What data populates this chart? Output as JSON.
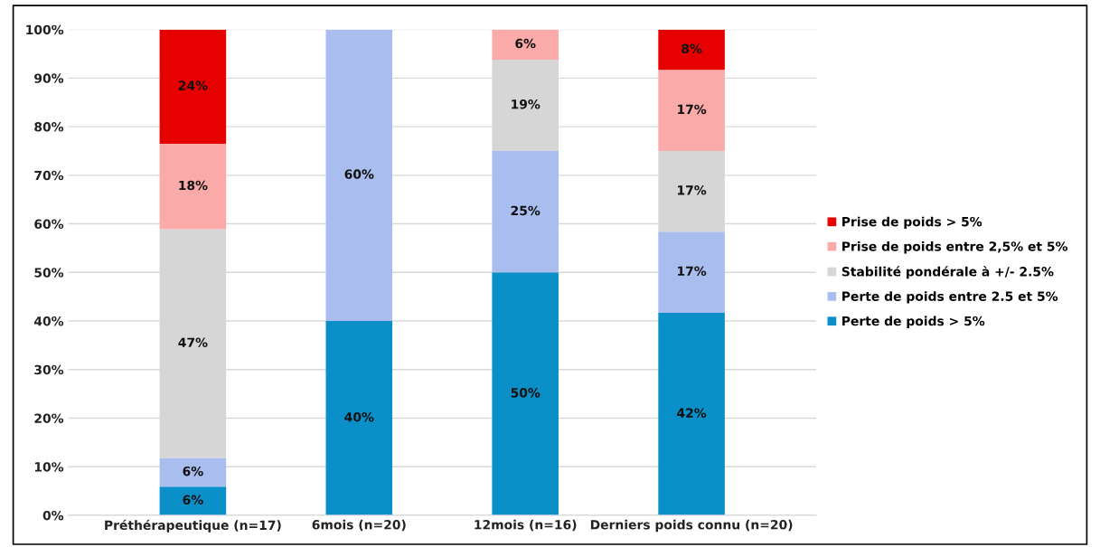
{
  "chart_data": {
    "type": "bar",
    "stacked": true,
    "categories": [
      "Préthérapeutique (n=17)",
      "6mois (n=20)",
      "12mois (n=16)",
      "Derniers poids connu (n=20)"
    ],
    "series": [
      {
        "name": "Perte de poids > 5%",
        "color": "#0a8fc8",
        "values": [
          5.9,
          40,
          50,
          41.7
        ],
        "value_labels": [
          "6%",
          "40%",
          "50%",
          "42%"
        ]
      },
      {
        "name": "Perte de poids entre 2.5 et 5%",
        "color": "#a9bdee",
        "values": [
          5.9,
          60,
          25,
          16.7
        ],
        "value_labels": [
          "6%",
          "60%",
          "25%",
          "17%"
        ]
      },
      {
        "name": "Stabilité pondérale à +/- 2.5%",
        "color": "#d6d6d6",
        "values": [
          47.1,
          null,
          18.8,
          16.6
        ],
        "value_labels": [
          "47%",
          null,
          "19%",
          "17%"
        ]
      },
      {
        "name": "Prise de poids entre 2,5% et 5%",
        "color": "#fbaaaa",
        "values": [
          17.6,
          null,
          6.2,
          16.7
        ],
        "value_labels": [
          "18%",
          null,
          "6%",
          "17%"
        ]
      },
      {
        "name": "Prise de poids > 5%",
        "color": "#e60000",
        "values": [
          23.5,
          null,
          null,
          8.3
        ],
        "value_labels": [
          "24%",
          null,
          null,
          "8%"
        ]
      }
    ],
    "ylim": [
      0,
      100
    ],
    "yticks": [
      {
        "value": 0,
        "label": "0%"
      },
      {
        "value": 10,
        "label": "10%"
      },
      {
        "value": 20,
        "label": "20%"
      },
      {
        "value": 30,
        "label": "30%"
      },
      {
        "value": 40,
        "label": "40%"
      },
      {
        "value": 50,
        "label": "50%"
      },
      {
        "value": 60,
        "label": "60%"
      },
      {
        "value": 70,
        "label": "70%"
      },
      {
        "value": 80,
        "label": "80%"
      },
      {
        "value": 90,
        "label": "90%"
      },
      {
        "value": 100,
        "label": "100%"
      }
    ],
    "grid": "y",
    "legend": "right"
  }
}
